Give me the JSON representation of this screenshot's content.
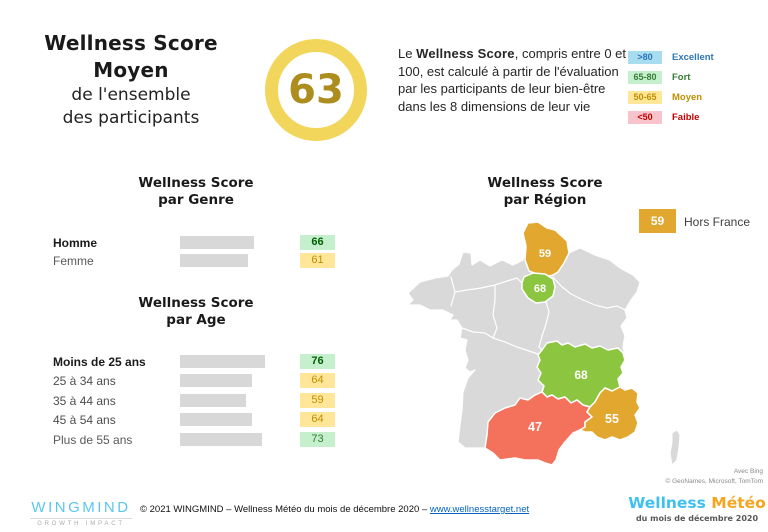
{
  "header": {
    "title": {
      "line1": "Wellness Score",
      "line2": "Moyen",
      "line3": "de l'ensemble",
      "line4": "des participants"
    },
    "score_badge": {
      "value": "63",
      "ring_color": "#F2D65C",
      "text_color": "#AC8D1E"
    },
    "description": {
      "prefix": "Le ",
      "bold": "Wellness Score",
      "rest": ", compris entre 0 et 100, est calculé à partir de l'évaluation par les participants de leur bien-être dans les 8 dimensions de leur vie"
    }
  },
  "legend": {
    "items": [
      {
        "range": ">80",
        "label": "Excellent",
        "chip_bg": "#A8DDF0",
        "text_color": "#2E75B6"
      },
      {
        "range": "65-80",
        "label": "Fort",
        "chip_bg": "#C6EFCE",
        "text_color": "#377E36"
      },
      {
        "range": "50-65",
        "label": "Moyen",
        "chip_bg": "#FFE699",
        "text_color": "#BF8F00"
      },
      {
        "range": "<50",
        "label": "Faible",
        "chip_bg": "#F8C3CB",
        "text_color": "#C00000"
      }
    ]
  },
  "genre_chart": {
    "title_line1": "Wellness Score",
    "title_line2": "par Genre",
    "rows": [
      {
        "label": "Homme",
        "value": 66,
        "score": "66",
        "label_weight": "700",
        "label_color": "#1a1a1a",
        "chip_bg": "#C6EFCE",
        "chip_color": "#006100",
        "chip_weight": "700"
      },
      {
        "label": "Femme",
        "value": 61,
        "score": "61",
        "label_weight": "400",
        "label_color": "#595959",
        "chip_bg": "#FFE699",
        "chip_color": "#BF8F00",
        "chip_weight": "400"
      }
    ]
  },
  "age_chart": {
    "title_line1": "Wellness Score",
    "title_line2": "par Age",
    "rows": [
      {
        "label": "Moins de 25 ans",
        "value": 76,
        "score": "76",
        "label_weight": "700",
        "label_color": "#1a1a1a",
        "chip_bg": "#C6EFCE",
        "chip_color": "#006100",
        "chip_weight": "700"
      },
      {
        "label": "25 à 34 ans",
        "value": 64,
        "score": "64",
        "label_weight": "400",
        "label_color": "#4d4d4d",
        "chip_bg": "#FFE699",
        "chip_color": "#BF8F00",
        "chip_weight": "400"
      },
      {
        "label": "35 à 44 ans",
        "value": 59,
        "score": "59",
        "label_weight": "400",
        "label_color": "#4d4d4d",
        "chip_bg": "#FFE699",
        "chip_color": "#BF8F00",
        "chip_weight": "400"
      },
      {
        "label": "45 à 54 ans",
        "value": 64,
        "score": "64",
        "label_weight": "400",
        "label_color": "#4d4d4d",
        "chip_bg": "#FFE699",
        "chip_color": "#BF8F00",
        "chip_weight": "400"
      },
      {
        "label": "Plus de 55 ans",
        "value": 73,
        "score": "73",
        "label_weight": "400",
        "label_color": "#595959",
        "chip_bg": "#C6EFCE",
        "chip_color": "#2F7D32",
        "chip_weight": "400"
      }
    ]
  },
  "region_chart": {
    "title_line1": "Wellness Score",
    "title_line2": "par Région",
    "hors_france": {
      "value": "59",
      "label": "Hors France",
      "chip_bg": "#E2A72E"
    },
    "regions": {
      "hauts_de_france": {
        "name": "Hauts-de-France",
        "value": "59",
        "color": "#E2A72E"
      },
      "ile_de_france": {
        "name": "Île-de-France",
        "value": "68",
        "color": "#8CC540"
      },
      "auvergne_rhone_alpes": {
        "name": "Auvergne-Rhône-Alpes",
        "value": "68",
        "color": "#8CC540"
      },
      "occitanie": {
        "name": "Occitanie",
        "value": "47",
        "color": "#F4715C"
      },
      "paca": {
        "name": "Provence-Alpes-Côte d'Azur",
        "value": "55",
        "color": "#E2A72E"
      },
      "other_color": "#D9D9D9"
    },
    "attribution_line1": "Avec Bing",
    "attribution_line2": "© GeoNames, Microsoft, TomTom"
  },
  "footer": {
    "wingmind_logo": {
      "name": "WINGMIND",
      "tagline": "GROWTH IMPACT"
    },
    "copyright_text": "© 2021 WINGMIND – Wellness Météo du mois de décembre 2020 – ",
    "copyright_link": "www.wellnesstarget.net",
    "meteo_logo": {
      "part1": "Wellness ",
      "part2": "Météo",
      "subtitle": "du mois de décembre 2020",
      "color1": "#3FC1F0",
      "color2": "#F5A61E"
    }
  },
  "chart_data": [
    {
      "type": "bar",
      "title": "Wellness Score Moyen de l'ensemble des participants",
      "categories": [
        "Ensemble des participants"
      ],
      "values": [
        63
      ]
    },
    {
      "type": "bar",
      "orientation": "horizontal",
      "title": "Wellness Score par Genre",
      "categories": [
        "Homme",
        "Femme"
      ],
      "values": [
        66,
        61
      ],
      "xlim": [
        0,
        100
      ]
    },
    {
      "type": "bar",
      "orientation": "horizontal",
      "title": "Wellness Score par Age",
      "categories": [
        "Moins de 25 ans",
        "25 à 34 ans",
        "35 à 44 ans",
        "45 à 54 ans",
        "Plus de 55 ans"
      ],
      "values": [
        76,
        64,
        59,
        64,
        73
      ],
      "xlim": [
        0,
        100
      ]
    },
    {
      "type": "heatmap",
      "subtype": "choropleth-map",
      "title": "Wellness Score par Région",
      "categories": [
        "Hauts-de-France",
        "Île-de-France",
        "Auvergne-Rhône-Alpes",
        "Occitanie",
        "Provence-Alpes-Côte d'Azur",
        "Hors France"
      ],
      "values": [
        59,
        68,
        68,
        47,
        55,
        59
      ],
      "legend": [
        {
          "range": ">80",
          "label": "Excellent"
        },
        {
          "range": "65-80",
          "label": "Fort"
        },
        {
          "range": "50-65",
          "label": "Moyen"
        },
        {
          "range": "<50",
          "label": "Faible"
        }
      ]
    }
  ]
}
